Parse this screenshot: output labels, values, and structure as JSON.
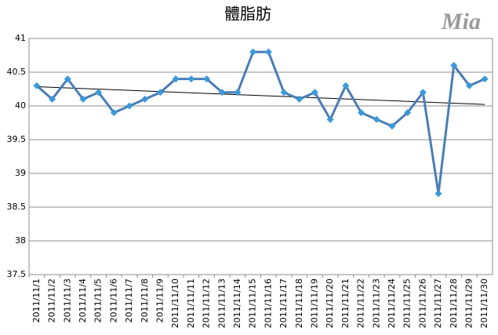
{
  "chart_data": {
    "type": "line",
    "title": "體脂肪",
    "watermark": "Mia",
    "categories": [
      "2011/11/1",
      "2011/11/2",
      "2011/11/3",
      "2011/11/4",
      "2011/11/5",
      "2011/11/6",
      "2011/11/7",
      "2011/11/8",
      "2011/11/9",
      "2011/11/10",
      "2011/11/11",
      "2011/11/12",
      "2011/11/13",
      "2011/11/14",
      "2011/11/15",
      "2011/11/16",
      "2011/11/17",
      "2011/11/18",
      "2011/11/19",
      "2011/11/20",
      "2011/11/21",
      "2011/11/22",
      "2011/11/23",
      "2011/11/24",
      "2011/11/25",
      "2011/11/26",
      "2011/11/27",
      "2011/11/28",
      "2011/11/29",
      "2011/11/30"
    ],
    "values": [
      40.3,
      40.1,
      40.4,
      40.1,
      40.2,
      39.9,
      40.0,
      40.1,
      40.2,
      40.4,
      40.4,
      40.4,
      40.2,
      40.2,
      40.8,
      40.8,
      40.2,
      40.1,
      40.2,
      39.8,
      40.3,
      39.9,
      39.8,
      39.7,
      39.9,
      40.2,
      38.7,
      40.6,
      40.3,
      40.4
    ],
    "color": "#4a7db5",
    "marker_color": "#3a9ad9",
    "trendline": true,
    "ylim": [
      37.5,
      41
    ],
    "yticks": [
      37.5,
      38,
      38.5,
      39,
      39.5,
      40,
      40.5,
      41
    ],
    "grid": true
  }
}
